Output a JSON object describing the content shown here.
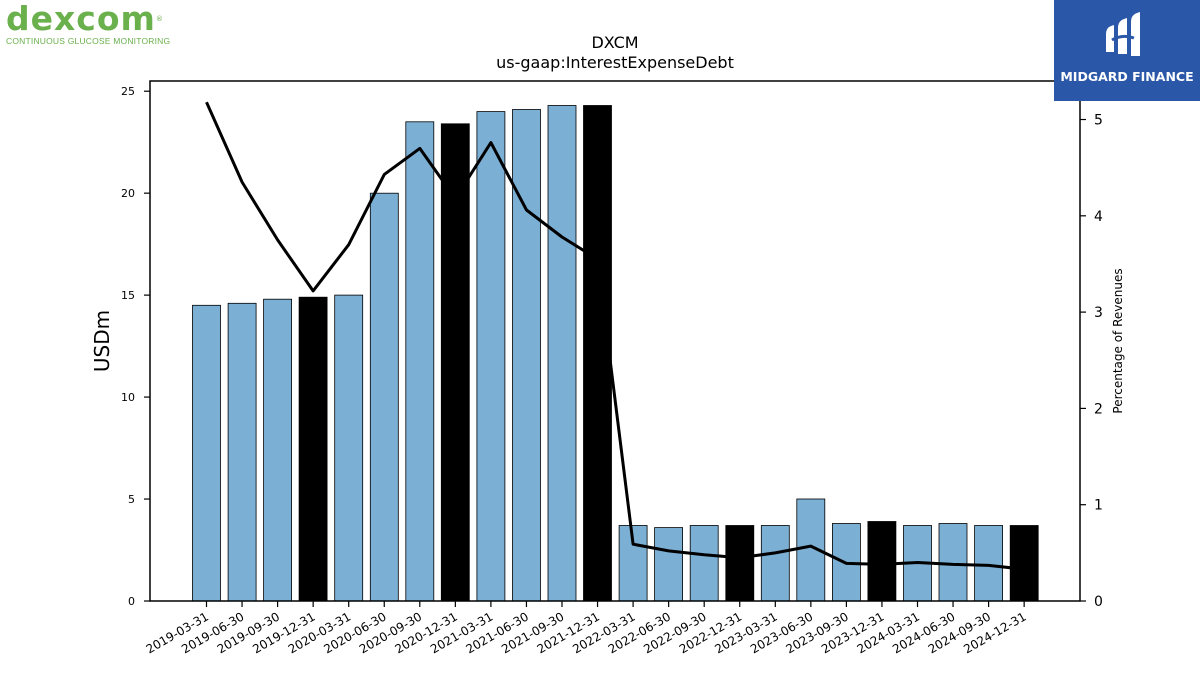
{
  "brand_left": {
    "wordmark": "dexcom",
    "registered": "®",
    "tagline": "CONTINUOUS GLUCOSE MONITORING",
    "color": "#6ab04c"
  },
  "brand_right": {
    "name": "MIDGARD FINANCE",
    "background": "#2b57a8"
  },
  "chart_data": {
    "type": "bar",
    "title": "DXCM",
    "subtitle": "us-gaap:InterestExpenseDebt",
    "ylabel": "USDm",
    "y2label": "Percentage of Revenues",
    "ylim": [
      0,
      25.5
    ],
    "y2lim": [
      0,
      5.4
    ],
    "yticks": [
      0,
      5,
      10,
      15,
      20,
      25
    ],
    "y2ticks": [
      0,
      1,
      2,
      3,
      4,
      5
    ],
    "categories": [
      "2019-03-31",
      "2019-06-30",
      "2019-09-30",
      "2019-12-31",
      "2020-03-31",
      "2020-06-30",
      "2020-09-30",
      "2020-12-31",
      "2021-03-31",
      "2021-06-30",
      "2021-09-30",
      "2021-12-31",
      "2022-03-31",
      "2022-06-30",
      "2022-09-30",
      "2022-12-31",
      "2023-03-31",
      "2023-06-30",
      "2023-09-30",
      "2023-12-31",
      "2024-03-31",
      "2024-06-30",
      "2024-09-30",
      "2024-12-31"
    ],
    "series": [
      {
        "type": "bar",
        "values": [
          14.5,
          14.6,
          14.8,
          14.9,
          15.0,
          20.0,
          23.5,
          23.4,
          24.0,
          24.1,
          24.3,
          24.3,
          3.7,
          3.6,
          3.7,
          3.7,
          3.7,
          5.0,
          3.8,
          3.9,
          3.7,
          3.8,
          3.7,
          3.7
        ]
      },
      {
        "type": "line",
        "axis": "right",
        "values": [
          5.18,
          4.35,
          3.75,
          3.22,
          3.7,
          4.43,
          4.7,
          4.18,
          4.76,
          4.06,
          3.78,
          3.55,
          0.59,
          0.52,
          0.48,
          0.45,
          0.5,
          0.57,
          0.39,
          0.38,
          0.4,
          0.38,
          0.37,
          0.33
        ]
      }
    ],
    "highlight_color": "#000000",
    "bar_color": "#7bafd4",
    "line_color": "#000000",
    "highlight_categories": [
      "2019-12-31",
      "2020-12-31",
      "2021-12-31",
      "2022-12-31",
      "2023-12-31",
      "2024-12-31"
    ],
    "grid": false
  }
}
